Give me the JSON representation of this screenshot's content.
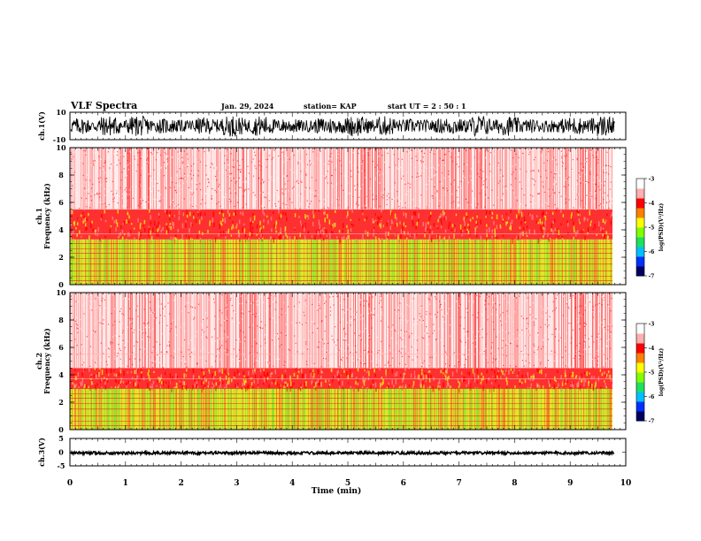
{
  "header": {
    "title": "VLF Spectra",
    "date": "Jan. 29, 2024",
    "station": "station= KAP",
    "start": "start  UT  =   2  : 50 : 1"
  },
  "colors": {
    "spectrogram_low": "#ffffff",
    "spectrogram_mid": "#ff2020",
    "spectrogram_yellow": "#f0e020",
    "spectrogram_green": "#60e020",
    "colorbar": [
      "#000060",
      "#0030ff",
      "#00c0ff",
      "#20e060",
      "#80ff00",
      "#ffff00",
      "#ff8000",
      "#ff0000",
      "#ffb0b0",
      "#ffffff"
    ],
    "trace": "#000000"
  },
  "chart_data": [
    {
      "type": "line",
      "panel": "waveform-ch1",
      "ylabel": "ch.1(V)",
      "ylim": [
        -10,
        10
      ],
      "yticks": [
        "10",
        "-10"
      ],
      "xlim": [
        0,
        10
      ],
      "series": [
        {
          "amplitude_range": [
            -8,
            8
          ],
          "x_end": 9.8
        }
      ]
    },
    {
      "type": "heatmap",
      "panel": "spectrogram-ch1",
      "ylabel": "ch.1\nFrequency  (kHz)",
      "ylabel_lines": [
        "ch.1",
        "Frequency  (kHz)"
      ],
      "ylim": [
        0,
        10
      ],
      "yticks": [
        "0",
        "2",
        "4",
        "6",
        "8",
        "10"
      ],
      "xlim": [
        0,
        10
      ],
      "x_end": 9.8,
      "bands": [
        {
          "freq": [
            0,
            3.3
          ],
          "level": "green-yellow"
        },
        {
          "freq": [
            3.3,
            5.5
          ],
          "level": "red"
        },
        {
          "freq": [
            5.5,
            10
          ],
          "level": "pink-white"
        }
      ],
      "colorbar": {
        "label": "log(PSD)(V²/Hz)",
        "ticks": [
          "-3",
          "-4",
          "-5",
          "-6",
          "-7"
        ],
        "range": [
          -7,
          -3
        ]
      }
    },
    {
      "type": "heatmap",
      "panel": "spectrogram-ch2",
      "ylabel": "ch.2\nFrequency  (kHz)",
      "ylabel_lines": [
        "ch.2",
        "Frequency  (kHz)"
      ],
      "ylim": [
        0,
        10
      ],
      "yticks": [
        "0",
        "2",
        "4",
        "6",
        "8",
        "10"
      ],
      "xlim": [
        0,
        10
      ],
      "x_end": 9.8,
      "bands": [
        {
          "freq": [
            0,
            3.0
          ],
          "level": "green-yellow"
        },
        {
          "freq": [
            3.0,
            4.5
          ],
          "level": "red"
        },
        {
          "freq": [
            4.5,
            10
          ],
          "level": "pink-white"
        }
      ],
      "colorbar": {
        "label": "log(PSD)(V²/Hz)",
        "ticks": [
          "-3",
          "-4",
          "-5",
          "-6",
          "-7"
        ],
        "range": [
          -7,
          -3
        ]
      }
    },
    {
      "type": "line",
      "panel": "waveform-ch3",
      "ylabel": "ch.3(V)",
      "ylim": [
        -5,
        5
      ],
      "yticks": [
        "5",
        "0",
        "-5"
      ],
      "xlim": [
        0,
        10
      ],
      "xlabel": "Time  (min)",
      "xticks": [
        "0",
        "1",
        "2",
        "3",
        "4",
        "5",
        "6",
        "7",
        "8",
        "9",
        "10"
      ],
      "series": [
        {
          "amplitude_range": [
            -0.8,
            0.2
          ],
          "x_end": 9.8
        }
      ]
    }
  ]
}
